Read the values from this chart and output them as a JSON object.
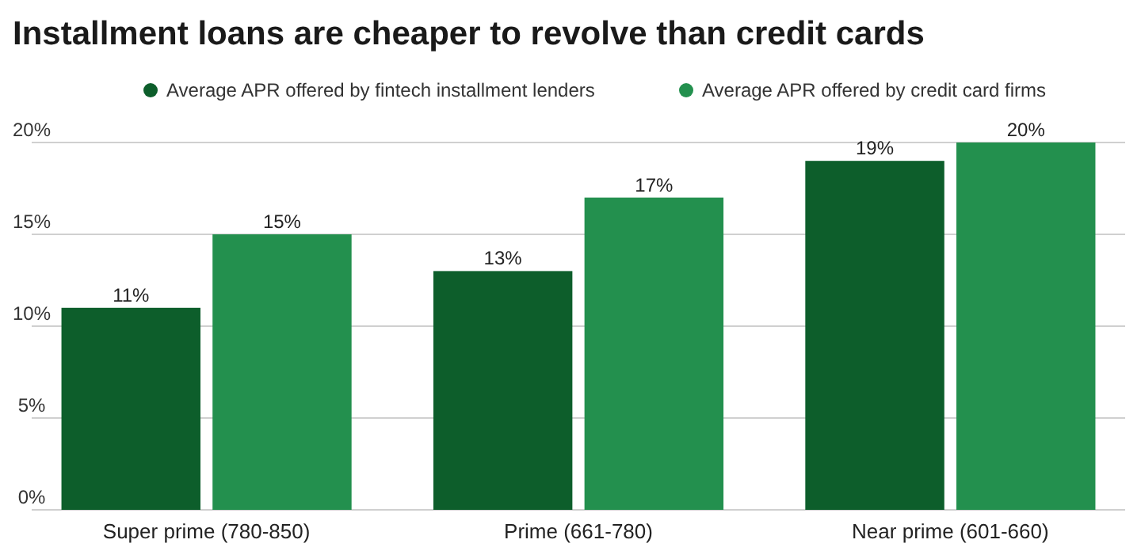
{
  "chart_data": {
    "type": "bar",
    "title": "Installment loans are cheaper to revolve than credit cards",
    "categories": [
      "Super prime (780-850)",
      "Prime (661-780)",
      "Near prime (601-660)"
    ],
    "series": [
      {
        "name": "Average APR offered by fintech installment lenders",
        "color": "#0d5e2b",
        "values": [
          11,
          13,
          19
        ],
        "value_labels": [
          "11%",
          "13%",
          "19%"
        ]
      },
      {
        "name": "Average APR offered by credit card firms",
        "color": "#23904e",
        "values": [
          15,
          17,
          20
        ],
        "value_labels": [
          "15%",
          "17%",
          "20%"
        ]
      }
    ],
    "ylim": [
      0,
      20
    ],
    "yticks": [
      {
        "value": 0,
        "label": "0%"
      },
      {
        "value": 5,
        "label": "5%"
      },
      {
        "value": 10,
        "label": "10%"
      },
      {
        "value": 15,
        "label": "15%"
      },
      {
        "value": 20,
        "label": "20%"
      }
    ],
    "grid": "y",
    "legend": "top"
  }
}
